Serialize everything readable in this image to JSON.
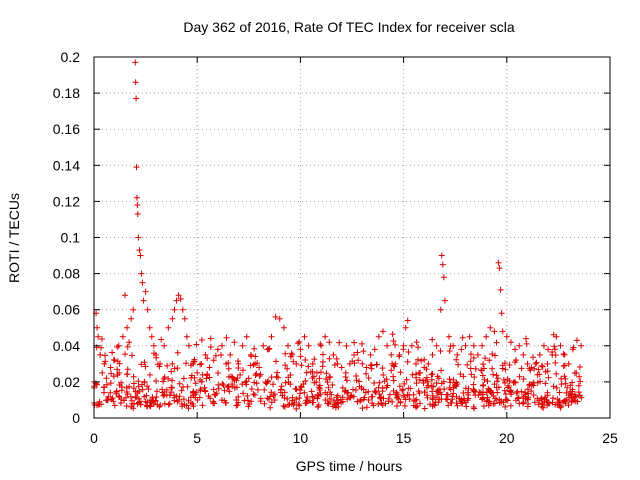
{
  "chart_data": {
    "type": "scatter",
    "title": "Day 362 of 2016, Rate Of TEC Index for receiver scla",
    "xlabel": "GPS time / hours",
    "ylabel": "ROTI / TECUs",
    "xlim": [
      0,
      25
    ],
    "ylim": [
      0,
      0.2
    ],
    "xticks": [
      0,
      5,
      10,
      15,
      20,
      25
    ],
    "yticks": [
      0,
      0.02,
      0.04,
      0.06,
      0.08,
      0.1,
      0.12,
      0.14,
      0.16,
      0.18,
      0.2
    ],
    "xtick_labels": [
      "0",
      "5",
      "10",
      "15",
      "20",
      "25"
    ],
    "ytick_labels": [
      "0",
      "0.02",
      "0.04",
      "0.06",
      "0.08",
      "0.1",
      "0.12",
      "0.14",
      "0.16",
      "0.18",
      "0.2"
    ],
    "grid": true,
    "marker": "+",
    "series": [
      {
        "name": "ROTI",
        "color": "#dd0000",
        "x": [
          0.0,
          0.1,
          0.15,
          0.2,
          0.3,
          0.4,
          0.5,
          0.6,
          0.8,
          1.0,
          1.2,
          1.4,
          1.5,
          1.6,
          1.7,
          1.8,
          1.9,
          2.0,
          2.02,
          2.04,
          2.06,
          2.08,
          2.1,
          2.12,
          2.15,
          2.2,
          2.25,
          2.3,
          2.35,
          2.4,
          2.5,
          2.6,
          2.7,
          2.8,
          2.9,
          3.0,
          3.2,
          3.4,
          3.6,
          3.8,
          3.9,
          4.0,
          4.1,
          4.2,
          4.3,
          4.4,
          4.5,
          4.6,
          4.8,
          5.0,
          5.2,
          5.4,
          5.6,
          5.8,
          6.0,
          6.2,
          6.4,
          6.6,
          6.8,
          7.0,
          7.2,
          7.4,
          7.6,
          7.8,
          8.0,
          8.2,
          8.4,
          8.6,
          8.8,
          9.0,
          9.2,
          9.4,
          9.6,
          9.8,
          10.0,
          10.2,
          10.4,
          10.6,
          10.8,
          11.0,
          11.2,
          11.4,
          11.6,
          11.8,
          12.0,
          12.2,
          12.4,
          12.6,
          12.8,
          13.0,
          13.2,
          13.4,
          13.6,
          13.8,
          14.0,
          14.2,
          14.4,
          14.6,
          14.8,
          15.0,
          15.1,
          15.2,
          15.4,
          15.6,
          15.8,
          16.0,
          16.2,
          16.4,
          16.6,
          16.8,
          16.85,
          16.9,
          16.95,
          17.0,
          17.2,
          17.4,
          17.6,
          17.8,
          18.0,
          18.2,
          18.4,
          18.6,
          18.8,
          19.0,
          19.2,
          19.4,
          19.6,
          19.65,
          19.7,
          19.75,
          19.8,
          20.0,
          20.2,
          20.4,
          20.6,
          20.8,
          21.0,
          21.2,
          21.4,
          21.6,
          21.8,
          22.0,
          22.2,
          22.4,
          22.6,
          22.8,
          23.0,
          23.2,
          23.4,
          23.6
        ],
        "y": [
          0.02,
          0.058,
          0.05,
          0.045,
          0.035,
          0.025,
          0.03,
          0.022,
          0.028,
          0.032,
          0.04,
          0.045,
          0.068,
          0.05,
          0.042,
          0.055,
          0.06,
          0.197,
          0.186,
          0.177,
          0.139,
          0.122,
          0.118,
          0.113,
          0.1,
          0.093,
          0.09,
          0.08,
          0.075,
          0.065,
          0.07,
          0.06,
          0.05,
          0.045,
          0.04,
          0.035,
          0.03,
          0.04,
          0.05,
          0.055,
          0.06,
          0.065,
          0.068,
          0.066,
          0.06,
          0.055,
          0.045,
          0.04,
          0.03,
          0.025,
          0.03,
          0.035,
          0.028,
          0.032,
          0.038,
          0.04,
          0.03,
          0.035,
          0.042,
          0.03,
          0.04,
          0.045,
          0.035,
          0.03,
          0.028,
          0.04,
          0.038,
          0.045,
          0.056,
          0.055,
          0.05,
          0.04,
          0.035,
          0.03,
          0.038,
          0.045,
          0.04,
          0.03,
          0.025,
          0.04,
          0.045,
          0.042,
          0.035,
          0.03,
          0.028,
          0.025,
          0.03,
          0.035,
          0.032,
          0.03,
          0.028,
          0.035,
          0.038,
          0.045,
          0.048,
          0.04,
          0.035,
          0.03,
          0.035,
          0.04,
          0.05,
          0.054,
          0.04,
          0.03,
          0.025,
          0.028,
          0.03,
          0.035,
          0.04,
          0.06,
          0.09,
          0.085,
          0.078,
          0.065,
          0.045,
          0.04,
          0.035,
          0.038,
          0.04,
          0.045,
          0.04,
          0.035,
          0.04,
          0.045,
          0.05,
          0.048,
          0.086,
          0.083,
          0.071,
          0.058,
          0.048,
          0.045,
          0.042,
          0.038,
          0.04,
          0.035,
          0.03,
          0.028,
          0.03,
          0.035,
          0.04,
          0.038,
          0.035,
          0.045,
          0.04,
          0.035,
          0.03,
          0.038,
          0.043,
          0.04
        ]
      }
    ],
    "background_band": "dense field of points between 0.005 and 0.035 across 0-23.7 hours"
  }
}
